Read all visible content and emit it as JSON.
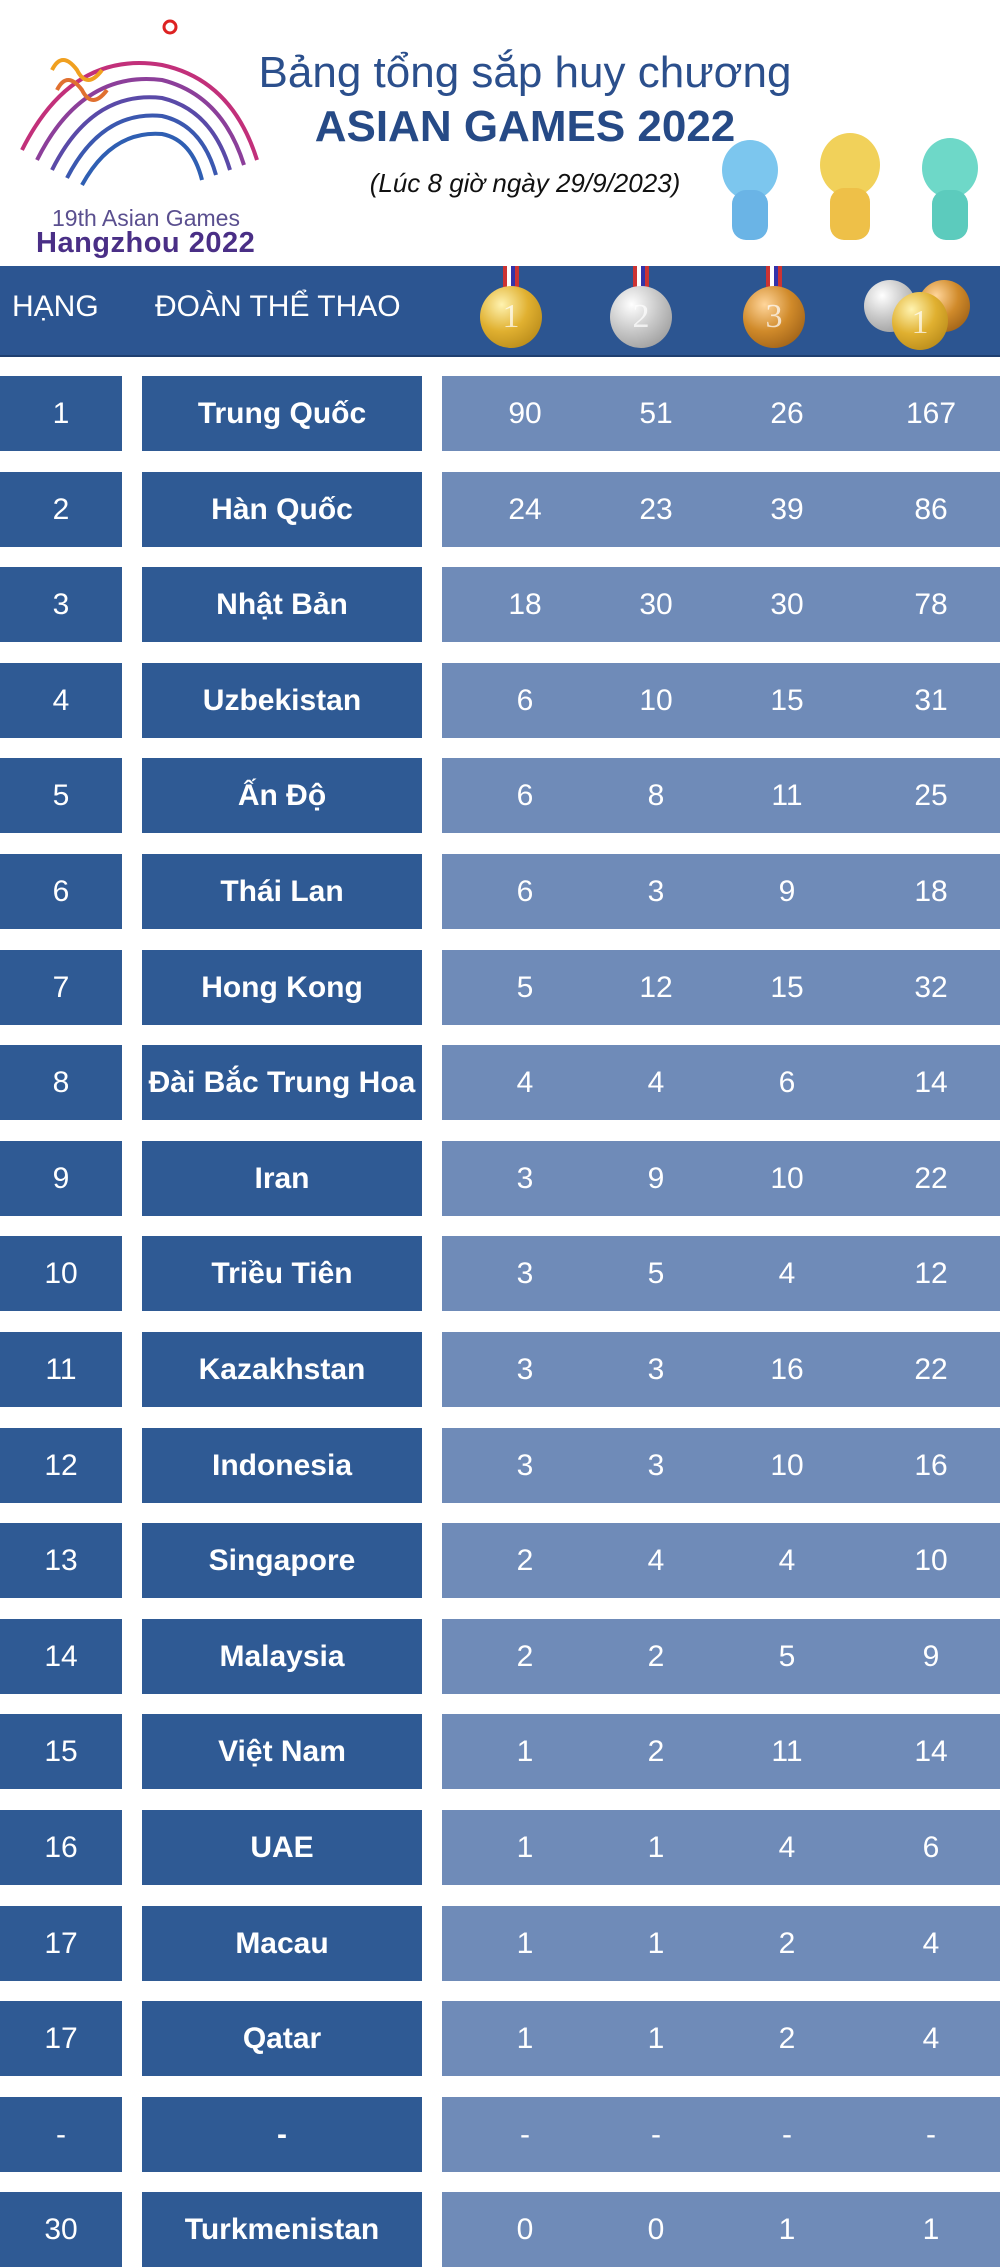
{
  "logo": {
    "line1": "19th Asian Games",
    "line2": "Hangzhou 2022"
  },
  "title": {
    "line1": "Bảng tổng sắp huy chương",
    "line2": "ASIAN GAMES 2022",
    "subtitle": "(Lúc 8 giờ ngày 29/9/2023)"
  },
  "header": {
    "rank": "HẠNG",
    "team": "ĐOÀN THỂ THAO",
    "medals": [
      {
        "type": "gold",
        "label": "1"
      },
      {
        "type": "silver",
        "label": "2"
      },
      {
        "type": "bronze",
        "label": "3"
      },
      {
        "type": "total",
        "label": "1"
      }
    ]
  },
  "colors": {
    "header": "#2c5591",
    "cell_dark": "#2f5a94",
    "cell_light": "#6f8bb8",
    "title": "#2b4f8c"
  },
  "rows": [
    {
      "rank": "1",
      "team": "Trung Quốc",
      "gold": "90",
      "silver": "51",
      "bronze": "26",
      "total": "167"
    },
    {
      "rank": "2",
      "team": "Hàn Quốc",
      "gold": "24",
      "silver": "23",
      "bronze": "39",
      "total": "86"
    },
    {
      "rank": "3",
      "team": "Nhật Bản",
      "gold": "18",
      "silver": "30",
      "bronze": "30",
      "total": "78"
    },
    {
      "rank": "4",
      "team": "Uzbekistan",
      "gold": "6",
      "silver": "10",
      "bronze": "15",
      "total": "31"
    },
    {
      "rank": "5",
      "team": "Ấn Độ",
      "gold": "6",
      "silver": "8",
      "bronze": "11",
      "total": "25"
    },
    {
      "rank": "6",
      "team": "Thái Lan",
      "gold": "6",
      "silver": "3",
      "bronze": "9",
      "total": "18"
    },
    {
      "rank": "7",
      "team": "Hong Kong",
      "gold": "5",
      "silver": "12",
      "bronze": "15",
      "total": "32"
    },
    {
      "rank": "8",
      "team": "Đài Bắc Trung Hoa",
      "gold": "4",
      "silver": "4",
      "bronze": "6",
      "total": "14"
    },
    {
      "rank": "9",
      "team": "Iran",
      "gold": "3",
      "silver": "9",
      "bronze": "10",
      "total": "22"
    },
    {
      "rank": "10",
      "team": "Triều Tiên",
      "gold": "3",
      "silver": "5",
      "bronze": "4",
      "total": "12"
    },
    {
      "rank": "11",
      "team": "Kazakhstan",
      "gold": "3",
      "silver": "3",
      "bronze": "16",
      "total": "22"
    },
    {
      "rank": "12",
      "team": "Indonesia",
      "gold": "3",
      "silver": "3",
      "bronze": "10",
      "total": "16"
    },
    {
      "rank": "13",
      "team": "Singapore",
      "gold": "2",
      "silver": "4",
      "bronze": "4",
      "total": "10"
    },
    {
      "rank": "14",
      "team": "Malaysia",
      "gold": "2",
      "silver": "2",
      "bronze": "5",
      "total": "9"
    },
    {
      "rank": "15",
      "team": "Việt Nam",
      "gold": "1",
      "silver": "2",
      "bronze": "11",
      "total": "14"
    },
    {
      "rank": "16",
      "team": "UAE",
      "gold": "1",
      "silver": "1",
      "bronze": "4",
      "total": "6"
    },
    {
      "rank": "17",
      "team": "Macau",
      "gold": "1",
      "silver": "1",
      "bronze": "2",
      "total": "4"
    },
    {
      "rank": "17",
      "team": "Qatar",
      "gold": "1",
      "silver": "1",
      "bronze": "2",
      "total": "4"
    },
    {
      "rank": "-",
      "team": "-",
      "gold": "-",
      "silver": "-",
      "bronze": "-",
      "total": "-"
    },
    {
      "rank": "30",
      "team": "Turkmenistan",
      "gold": "0",
      "silver": "0",
      "bronze": "1",
      "total": "1"
    }
  ]
}
